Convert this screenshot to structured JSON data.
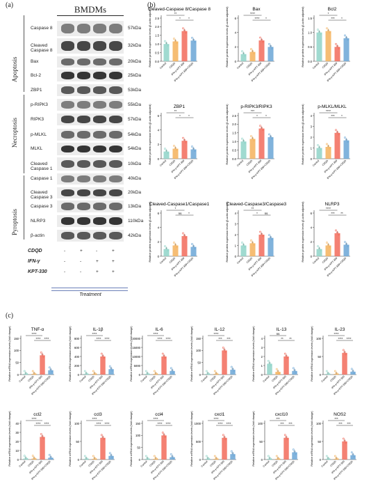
{
  "panel_a": {
    "label": "(a)",
    "title": "BMDMs",
    "rows": [
      {
        "name": "Caspase 8",
        "kda": "57kDa"
      },
      {
        "name": "Cleaved Caspase 8",
        "kda": "32kDa"
      },
      {
        "name": "Bax",
        "kda": "20kDa"
      },
      {
        "name": "Bcl-2",
        "kda": "25kDa"
      },
      {
        "name": "ZBP1",
        "kda": "53kDa"
      },
      {
        "name": "p-RIPK3",
        "kda": "55kDa"
      },
      {
        "name": "RIPK3",
        "kda": "57kDa"
      },
      {
        "name": "p-MLKL",
        "kda": "54kDa"
      },
      {
        "name": "MLKL",
        "kda": "54kDa"
      },
      {
        "name": "Cleaved Caspase 1",
        "kda": "10kDa"
      },
      {
        "name": "Caspase 1",
        "kda": "40kDa"
      },
      {
        "name": "Cleaved Caspase 3",
        "kda": "20kDa"
      },
      {
        "name": "Caspase 3",
        "kda": "13kDa"
      },
      {
        "name": "NLRP3",
        "kda": "110kDa"
      },
      {
        "name": "β-actin",
        "kda": "42kDa"
      }
    ],
    "groups": [
      "Apoptosis",
      "Necroptosis",
      "Pyroptosis"
    ],
    "treatment_rows": [
      {
        "name": "CDQD",
        "marks": [
          "-",
          "+",
          "-",
          "+"
        ]
      },
      {
        "name": "IFN-γ",
        "marks": [
          "-",
          "-",
          "+",
          "+"
        ]
      },
      {
        "name": "KPT-330",
        "marks": [
          "-",
          "-",
          "+",
          "+"
        ]
      }
    ],
    "treatment_label": "Treatment"
  },
  "panel_b": {
    "label": "(b)",
    "ylabel": "Relative protein expression levels (β-actin adjusted)",
    "xcats": [
      "Control",
      "CDQD",
      "IFN-γ+KPT-330",
      "IFN-γ+KPT-330+CDQD"
    ],
    "colors": [
      "#8fd4c8",
      "#f5b25c",
      "#f26b5b",
      "#6ba6d6"
    ]
  },
  "panel_c": {
    "label": "(c)",
    "ylabel": "Relative mRNA expression levels (fold change)",
    "xcats": [
      "Control",
      "CDQD",
      "IFN-γ+KPT-330",
      "IFN-γ+KPT-330+CDQD"
    ]
  },
  "chart_data": [
    {
      "type": "bar",
      "title": "Cleaved-Caspase 8/Caspase 8",
      "categories": [
        "Control",
        "CDQD",
        "IFN-γ+KPT-330",
        "IFN-γ+KPT-330+CDQD"
      ],
      "values": [
        1.0,
        1.15,
        1.75,
        1.2
      ],
      "ylim": [
        0,
        2.5
      ],
      "yticks": [
        "0.0",
        "0.5",
        "1.0",
        "1.5",
        "2.0",
        "2.5"
      ],
      "sig": [
        "**",
        "*",
        "*"
      ]
    },
    {
      "type": "bar",
      "title": "Bax",
      "categories": [
        "Control",
        "CDQD",
        "IFN-γ+KPT-330",
        "IFN-γ+KPT-330+CDQD"
      ],
      "values": [
        1.0,
        1.3,
        2.9,
        2.0
      ],
      "ylim": [
        0,
        6
      ],
      "yticks": [
        "0",
        "2",
        "4",
        "6"
      ],
      "sig": [
        "****",
        "****",
        "*"
      ]
    },
    {
      "type": "bar",
      "title": "Bcl2",
      "categories": [
        "Control",
        "CDQD",
        "IFN-γ+KPT-330",
        "IFN-γ+KPT-330+CDQD"
      ],
      "values": [
        1.0,
        1.05,
        0.5,
        0.8
      ],
      "ylim": [
        0,
        1.5
      ],
      "yticks": [
        "0.0",
        "0.5",
        "1.0",
        "1.5"
      ],
      "sig": [
        "*",
        "***",
        "*"
      ]
    },
    {
      "type": "bar",
      "title": "ZBP1",
      "categories": [
        "Control",
        "CDQD",
        "IFN-γ+KPT-330",
        "IFN-γ+KPT-330+CDQD"
      ],
      "values": [
        1.0,
        1.4,
        2.5,
        1.3
      ],
      "ylim": [
        0,
        6
      ],
      "yticks": [
        "0",
        "2",
        "4",
        "6"
      ],
      "sig": [
        "**",
        "*",
        "*"
      ]
    },
    {
      "type": "bar",
      "title": "p-RIPK3/RIPK3",
      "categories": [
        "Control",
        "CDQD",
        "IFN-γ+KPT-330",
        "IFN-γ+KPT-330+CDQD"
      ],
      "values": [
        1.0,
        1.15,
        1.75,
        1.25
      ],
      "ylim": [
        0,
        2.5
      ],
      "yticks": [
        "0.0",
        "0.5",
        "1.0",
        "1.5",
        "2.0",
        "2.5"
      ],
      "sig": [
        "***",
        "*",
        "*"
      ]
    },
    {
      "type": "bar",
      "title": "p-MLKL/MLKL",
      "categories": [
        "Control",
        "CDQD",
        "IFN-γ+KPT-330",
        "IFN-γ+KPT-330+CDQD"
      ],
      "values": [
        1.0,
        1.1,
        2.4,
        1.7
      ],
      "ylim": [
        0,
        4
      ],
      "yticks": [
        "0",
        "1",
        "2",
        "3",
        "4"
      ],
      "sig": [
        "****",
        "***",
        "*"
      ]
    },
    {
      "type": "bar",
      "title": "Cleaved-Caspase1/Caspase1",
      "categories": [
        "Control",
        "CDQD",
        "IFN-γ+KPT-330",
        "IFN-γ+KPT-330+CDQD"
      ],
      "values": [
        1.0,
        1.5,
        2.8,
        1.3
      ],
      "ylim": [
        0,
        6
      ],
      "yticks": [
        "0",
        "2",
        "4",
        "6"
      ],
      "sig": [
        "*",
        "ns",
        "*"
      ]
    },
    {
      "type": "bar",
      "title": "Cleaved-Caspase3/Caspase3",
      "categories": [
        "Control",
        "CDQD",
        "IFN-γ+KPT-330",
        "IFN-γ+KPT-330+CDQD"
      ],
      "values": [
        1.0,
        1.2,
        2.0,
        1.7
      ],
      "ylim": [
        0,
        4
      ],
      "yticks": [
        "0",
        "1",
        "2",
        "3",
        "4"
      ],
      "sig": [
        "**",
        "*",
        "ns"
      ]
    },
    {
      "type": "bar",
      "title": "NLRP3",
      "categories": [
        "Control",
        "CDQD",
        "IFN-γ+KPT-330",
        "IFN-γ+KPT-330+CDQD"
      ],
      "values": [
        1.0,
        1.5,
        3.2,
        1.6
      ],
      "ylim": [
        0,
        6
      ],
      "yticks": [
        "0",
        "2",
        "4",
        "6"
      ],
      "sig": [
        "****",
        "***",
        "**"
      ]
    },
    {
      "type": "bar",
      "title": "TNF-α",
      "categories": [
        "Control",
        "CDQD",
        "IFN-γ+KPT-330",
        "IFN-γ+KPT-330+CDQD"
      ],
      "values": [
        1,
        1,
        80,
        18
      ],
      "ylim": [
        0,
        150
      ],
      "yticks": [
        "0",
        "50",
        "100",
        "150"
      ],
      "sig": [
        "****",
        "****",
        "****"
      ]
    },
    {
      "type": "bar",
      "title": "IL-1β",
      "categories": [
        "Control",
        "CDQD",
        "IFN-γ+KPT-330",
        "IFN-γ+KPT-330+CDQD"
      ],
      "values": [
        1,
        1,
        400,
        120
      ],
      "ylim": [
        0,
        800
      ],
      "yticks": [
        "0",
        "200",
        "400",
        "600",
        "800"
      ],
      "sig": [
        "****",
        "****",
        "****"
      ]
    },
    {
      "type": "bar",
      "title": "IL-6",
      "categories": [
        "Control",
        "CDQD",
        "IFN-γ+KPT-330",
        "IFN-γ+KPT-330+CDQD"
      ],
      "values": [
        1,
        1,
        10000,
        2000
      ],
      "ylim": [
        0,
        20000
      ],
      "yticks": [
        "0",
        "5000",
        "10000",
        "15000",
        "20000"
      ],
      "sig": [
        "****",
        "****",
        "****"
      ]
    },
    {
      "type": "bar",
      "title": "IL-12",
      "categories": [
        "Control",
        "CDQD",
        "IFN-γ+KPT-330",
        "IFN-γ+KPT-330+CDQD"
      ],
      "values": [
        1,
        1,
        100,
        20
      ],
      "ylim": [
        0,
        150
      ],
      "yticks": [
        "0",
        "50",
        "100",
        "150"
      ],
      "sig": [
        "****",
        "***",
        "***"
      ]
    },
    {
      "type": "bar",
      "title": "IL-13",
      "categories": [
        "Control",
        "CDQD",
        "IFN-γ+KPT-330",
        "IFN-γ+KPT-330+CDQD"
      ],
      "values": [
        1.2,
        0.3,
        2.0,
        0.4
      ],
      "ylim": [
        0,
        4
      ],
      "yticks": [
        "0",
        "1",
        "2",
        "3",
        "4"
      ],
      "sig": [
        "ns",
        "**",
        "**"
      ]
    },
    {
      "type": "bar",
      "title": "IL-23",
      "categories": [
        "Control",
        "CDQD",
        "IFN-γ+KPT-330",
        "IFN-γ+KPT-330+CDQD"
      ],
      "values": [
        1,
        1,
        60,
        8
      ],
      "ylim": [
        0,
        100
      ],
      "yticks": [
        "0",
        "50",
        "100"
      ],
      "sig": [
        "****",
        "****",
        "****"
      ]
    },
    {
      "type": "bar",
      "title": "ccl2",
      "categories": [
        "Control",
        "CDQD",
        "IFN-γ+KPT-330",
        "IFN-γ+KPT-330+CDQD"
      ],
      "values": [
        1,
        1,
        25,
        2
      ],
      "ylim": [
        0,
        40
      ],
      "yticks": [
        "0",
        "10",
        "20",
        "30",
        "40"
      ],
      "sig": [
        "****",
        "****",
        "****"
      ]
    },
    {
      "type": "bar",
      "title": "ccl3",
      "categories": [
        "Control",
        "CDQD",
        "IFN-γ+KPT-330",
        "IFN-γ+KPT-330+CDQD"
      ],
      "values": [
        1,
        1,
        60,
        10
      ],
      "ylim": [
        0,
        100
      ],
      "yticks": [
        "0",
        "50",
        "100"
      ],
      "sig": [
        "****",
        "****",
        "****"
      ]
    },
    {
      "type": "bar",
      "title": "ccl4",
      "categories": [
        "Control",
        "CDQD",
        "IFN-γ+KPT-330",
        "IFN-γ+KPT-330+CDQD"
      ],
      "values": [
        1,
        1,
        100,
        10
      ],
      "ylim": [
        0,
        150
      ],
      "yticks": [
        "0",
        "50",
        "100",
        "150"
      ],
      "sig": [
        "****",
        "****",
        "****"
      ]
    },
    {
      "type": "bar",
      "title": "cxcl1",
      "categories": [
        "Control",
        "CDQD",
        "IFN-γ+KPT-330",
        "IFN-γ+KPT-330+CDQD"
      ],
      "values": [
        1,
        1,
        600,
        150
      ],
      "ylim": [
        0,
        1000
      ],
      "yticks": [
        "0",
        "500",
        "1000"
      ],
      "sig": [
        "****",
        "****",
        "****"
      ]
    },
    {
      "type": "bar",
      "title": "cxcl10",
      "categories": [
        "Control",
        "CDQD",
        "IFN-γ+KPT-330",
        "IFN-γ+KPT-330+CDQD"
      ],
      "values": [
        1,
        1,
        60,
        20
      ],
      "ylim": [
        0,
        100
      ],
      "yticks": [
        "0",
        "50",
        "100"
      ],
      "sig": [
        "***",
        "***",
        "***"
      ]
    },
    {
      "type": "bar",
      "title": "NOS2",
      "categories": [
        "Control",
        "CDQD",
        "IFN-γ+KPT-330",
        "IFN-γ+KPT-330+CDQD"
      ],
      "values": [
        1,
        1,
        50,
        12
      ],
      "ylim": [
        0,
        100
      ],
      "yticks": [
        "0",
        "50",
        "100"
      ],
      "sig": [
        "***",
        "***",
        "***"
      ]
    }
  ]
}
